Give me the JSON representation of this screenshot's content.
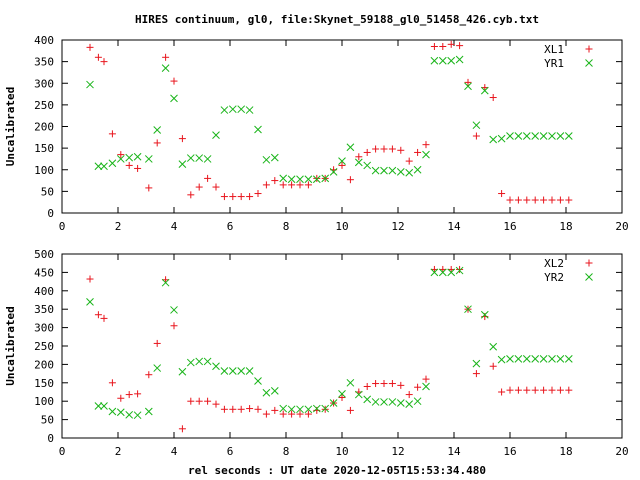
{
  "figure": {
    "title": "HIRES continuum, gl0, file:Skynet_59188_gl0_51458_426.cyb.txt",
    "xlabel": "rel seconds : UT date 2020-12-05T15:53:34.480"
  },
  "colors": {
    "red": "#e8141c",
    "green": "#18b418",
    "axis": "#000000"
  },
  "chart_data": [
    {
      "type": "scatter",
      "ylabel": "Uncalibrated",
      "xlim": [
        0,
        20
      ],
      "ylim": [
        0,
        400
      ],
      "xticks": [
        0,
        2,
        4,
        6,
        8,
        10,
        12,
        14,
        16,
        18,
        20
      ],
      "yticks": [
        0,
        50,
        100,
        150,
        200,
        250,
        300,
        350,
        400
      ],
      "legend_position": "top-right",
      "series": [
        {
          "name": "XL1",
          "marker": "plus",
          "color": "#e8141c",
          "x": [
            1.0,
            1.3,
            1.5,
            1.8,
            2.1,
            2.4,
            2.7,
            3.1,
            3.4,
            3.7,
            4.0,
            4.3,
            4.6,
            4.9,
            5.2,
            5.5,
            5.8,
            6.1,
            6.4,
            6.7,
            7.0,
            7.3,
            7.6,
            7.9,
            8.2,
            8.5,
            8.8,
            9.1,
            9.4,
            9.7,
            10.0,
            10.3,
            10.6,
            10.9,
            11.2,
            11.5,
            11.8,
            12.1,
            12.4,
            12.7,
            13.0,
            13.3,
            13.6,
            13.9,
            14.2,
            14.5,
            14.8,
            15.1,
            15.4,
            15.7,
            16.0,
            16.3,
            16.6,
            16.9,
            17.2,
            17.5,
            17.8,
            18.1
          ],
          "y": [
            383,
            360,
            350,
            183,
            135,
            110,
            103,
            58,
            162,
            360,
            305,
            172,
            42,
            60,
            80,
            60,
            38,
            38,
            38,
            38,
            45,
            65,
            75,
            65,
            65,
            65,
            65,
            80,
            80,
            100,
            110,
            77,
            130,
            140,
            148,
            148,
            148,
            145,
            120,
            140,
            158,
            385,
            385,
            390,
            387,
            302,
            178,
            290,
            267,
            45,
            30,
            30,
            30,
            30,
            30,
            30,
            30,
            30
          ]
        },
        {
          "name": "YR1",
          "marker": "cross",
          "color": "#18b418",
          "x": [
            1.0,
            1.3,
            1.5,
            1.8,
            2.1,
            2.4,
            2.7,
            3.1,
            3.4,
            3.7,
            4.0,
            4.3,
            4.6,
            4.9,
            5.2,
            5.5,
            5.8,
            6.1,
            6.4,
            6.7,
            7.0,
            7.3,
            7.6,
            7.9,
            8.2,
            8.5,
            8.8,
            9.1,
            9.4,
            9.7,
            10.0,
            10.3,
            10.6,
            10.9,
            11.2,
            11.5,
            11.8,
            12.1,
            12.4,
            12.7,
            13.0,
            13.3,
            13.6,
            13.9,
            14.2,
            14.5,
            14.8,
            15.1,
            15.4,
            15.7,
            16.0,
            16.3,
            16.6,
            16.9,
            17.2,
            17.5,
            17.8,
            18.1
          ],
          "y": [
            297,
            108,
            108,
            115,
            125,
            128,
            130,
            125,
            192,
            335,
            265,
            113,
            127,
            127,
            125,
            180,
            238,
            240,
            240,
            238,
            193,
            123,
            128,
            80,
            78,
            78,
            78,
            78,
            80,
            95,
            120,
            152,
            117,
            110,
            98,
            98,
            98,
            95,
            93,
            100,
            135,
            352,
            352,
            352,
            355,
            293,
            203,
            283,
            170,
            172,
            178,
            178,
            178,
            178,
            178,
            178,
            178,
            178
          ]
        }
      ]
    },
    {
      "type": "scatter",
      "ylabel": "Uncalibrated",
      "xlim": [
        0,
        20
      ],
      "ylim": [
        0,
        500
      ],
      "xticks": [
        0,
        2,
        4,
        6,
        8,
        10,
        12,
        14,
        16,
        18,
        20
      ],
      "yticks": [
        0,
        50,
        100,
        150,
        200,
        250,
        300,
        350,
        400,
        450,
        500
      ],
      "legend_position": "top-right",
      "series": [
        {
          "name": "XL2",
          "marker": "plus",
          "color": "#e8141c",
          "x": [
            1.0,
            1.3,
            1.5,
            1.8,
            2.1,
            2.4,
            2.7,
            3.1,
            3.4,
            3.7,
            4.0,
            4.3,
            4.6,
            4.9,
            5.2,
            5.5,
            5.8,
            6.1,
            6.4,
            6.7,
            7.0,
            7.3,
            7.6,
            7.9,
            8.2,
            8.5,
            8.8,
            9.1,
            9.4,
            9.7,
            10.0,
            10.3,
            10.6,
            10.9,
            11.2,
            11.5,
            11.8,
            12.1,
            12.4,
            12.7,
            13.0,
            13.3,
            13.6,
            13.9,
            14.2,
            14.5,
            14.8,
            15.1,
            15.4,
            15.7,
            16.0,
            16.3,
            16.6,
            16.9,
            17.2,
            17.5,
            17.8,
            18.1
          ],
          "y": [
            432,
            335,
            325,
            150,
            108,
            118,
            120,
            172,
            257,
            430,
            305,
            25,
            100,
            100,
            100,
            92,
            78,
            78,
            78,
            80,
            78,
            65,
            75,
            65,
            65,
            65,
            65,
            75,
            78,
            95,
            110,
            75,
            125,
            140,
            148,
            148,
            148,
            143,
            118,
            138,
            160,
            458,
            458,
            458,
            458,
            350,
            175,
            330,
            195,
            125,
            130,
            130,
            130,
            130,
            130,
            130,
            130,
            130
          ]
        },
        {
          "name": "YR2",
          "marker": "cross",
          "color": "#18b418",
          "x": [
            1.0,
            1.3,
            1.5,
            1.8,
            2.1,
            2.4,
            2.7,
            3.1,
            3.4,
            3.7,
            4.0,
            4.3,
            4.6,
            4.9,
            5.2,
            5.5,
            5.8,
            6.1,
            6.4,
            6.7,
            7.0,
            7.3,
            7.6,
            7.9,
            8.2,
            8.5,
            8.8,
            9.1,
            9.4,
            9.7,
            10.0,
            10.3,
            10.6,
            10.9,
            11.2,
            11.5,
            11.8,
            12.1,
            12.4,
            12.7,
            13.0,
            13.3,
            13.6,
            13.9,
            14.2,
            14.5,
            14.8,
            15.1,
            15.4,
            15.7,
            16.0,
            16.3,
            16.6,
            16.9,
            17.2,
            17.5,
            17.8,
            18.1
          ],
          "y": [
            370,
            87,
            87,
            72,
            70,
            63,
            62,
            72,
            190,
            422,
            348,
            180,
            205,
            208,
            208,
            195,
            182,
            182,
            182,
            182,
            155,
            123,
            128,
            80,
            78,
            78,
            78,
            80,
            80,
            95,
            120,
            150,
            118,
            105,
            98,
            98,
            98,
            95,
            92,
            100,
            140,
            450,
            450,
            450,
            455,
            350,
            202,
            335,
            248,
            213,
            215,
            215,
            215,
            215,
            215,
            215,
            215,
            215
          ]
        }
      ]
    }
  ]
}
